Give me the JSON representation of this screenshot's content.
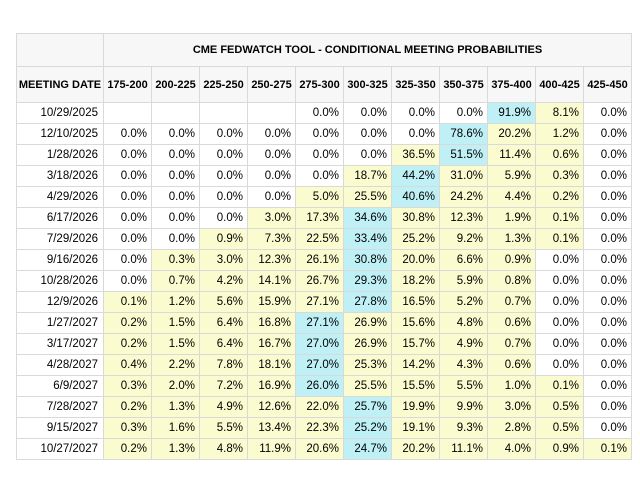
{
  "title": "CME FEDWATCH TOOL - CONDITIONAL MEETING PROBABILITIES",
  "date_header": "MEETING DATE",
  "columns": [
    "175-200",
    "200-225",
    "225-250",
    "250-275",
    "275-300",
    "300-325",
    "325-350",
    "350-375",
    "375-400",
    "400-425",
    "425-450"
  ],
  "colors": {
    "max_cell": "#bff0f5",
    "other_nonzero": "#fbfbd0"
  },
  "rows": [
    {
      "date": "10/29/2025",
      "values": [
        "",
        "",
        "",
        "",
        "0.0%",
        "0.0%",
        "0.0%",
        "0.0%",
        "91.9%",
        "8.1%",
        "0.0%"
      ],
      "hl": [
        "",
        "",
        "",
        "",
        "",
        "",
        "",
        "",
        "c",
        "y",
        ""
      ]
    },
    {
      "date": "12/10/2025",
      "values": [
        "0.0%",
        "0.0%",
        "0.0%",
        "0.0%",
        "0.0%",
        "0.0%",
        "0.0%",
        "78.6%",
        "20.2%",
        "1.2%",
        "0.0%"
      ],
      "hl": [
        "",
        "",
        "",
        "",
        "",
        "",
        "",
        "c",
        "y",
        "y",
        ""
      ]
    },
    {
      "date": "1/28/2026",
      "values": [
        "0.0%",
        "0.0%",
        "0.0%",
        "0.0%",
        "0.0%",
        "0.0%",
        "36.5%",
        "51.5%",
        "11.4%",
        "0.6%",
        "0.0%"
      ],
      "hl": [
        "",
        "",
        "",
        "",
        "",
        "",
        "y",
        "c",
        "y",
        "y",
        ""
      ]
    },
    {
      "date": "3/18/2026",
      "values": [
        "0.0%",
        "0.0%",
        "0.0%",
        "0.0%",
        "0.0%",
        "18.7%",
        "44.2%",
        "31.0%",
        "5.9%",
        "0.3%",
        "0.0%"
      ],
      "hl": [
        "",
        "",
        "",
        "",
        "",
        "y",
        "c",
        "y",
        "y",
        "y",
        ""
      ]
    },
    {
      "date": "4/29/2026",
      "values": [
        "0.0%",
        "0.0%",
        "0.0%",
        "0.0%",
        "5.0%",
        "25.5%",
        "40.6%",
        "24.2%",
        "4.4%",
        "0.2%",
        "0.0%"
      ],
      "hl": [
        "",
        "",
        "",
        "",
        "y",
        "y",
        "c",
        "y",
        "y",
        "y",
        ""
      ]
    },
    {
      "date": "6/17/2026",
      "values": [
        "0.0%",
        "0.0%",
        "0.0%",
        "3.0%",
        "17.3%",
        "34.6%",
        "30.8%",
        "12.3%",
        "1.9%",
        "0.1%",
        "0.0%"
      ],
      "hl": [
        "",
        "",
        "",
        "y",
        "y",
        "c",
        "y",
        "y",
        "y",
        "y",
        ""
      ]
    },
    {
      "date": "7/29/2026",
      "values": [
        "0.0%",
        "0.0%",
        "0.9%",
        "7.3%",
        "22.5%",
        "33.4%",
        "25.2%",
        "9.2%",
        "1.3%",
        "0.1%",
        "0.0%"
      ],
      "hl": [
        "",
        "",
        "y",
        "y",
        "y",
        "c",
        "y",
        "y",
        "y",
        "y",
        ""
      ]
    },
    {
      "date": "9/16/2026",
      "values": [
        "0.0%",
        "0.3%",
        "3.0%",
        "12.3%",
        "26.1%",
        "30.8%",
        "20.0%",
        "6.6%",
        "0.9%",
        "0.0%",
        "0.0%"
      ],
      "hl": [
        "",
        "y",
        "y",
        "y",
        "y",
        "c",
        "y",
        "y",
        "y",
        "",
        ""
      ]
    },
    {
      "date": "10/28/2026",
      "values": [
        "0.0%",
        "0.7%",
        "4.2%",
        "14.1%",
        "26.7%",
        "29.3%",
        "18.2%",
        "5.9%",
        "0.8%",
        "0.0%",
        "0.0%"
      ],
      "hl": [
        "",
        "y",
        "y",
        "y",
        "y",
        "c",
        "y",
        "y",
        "y",
        "",
        ""
      ]
    },
    {
      "date": "12/9/2026",
      "values": [
        "0.1%",
        "1.2%",
        "5.6%",
        "15.9%",
        "27.1%",
        "27.8%",
        "16.5%",
        "5.2%",
        "0.7%",
        "0.0%",
        "0.0%"
      ],
      "hl": [
        "y",
        "y",
        "y",
        "y",
        "y",
        "c",
        "y",
        "y",
        "y",
        "",
        ""
      ]
    },
    {
      "date": "1/27/2027",
      "values": [
        "0.2%",
        "1.5%",
        "6.4%",
        "16.8%",
        "27.1%",
        "26.9%",
        "15.6%",
        "4.8%",
        "0.6%",
        "0.0%",
        "0.0%"
      ],
      "hl": [
        "y",
        "y",
        "y",
        "y",
        "c",
        "y",
        "y",
        "y",
        "y",
        "",
        ""
      ]
    },
    {
      "date": "3/17/2027",
      "values": [
        "0.2%",
        "1.5%",
        "6.4%",
        "16.7%",
        "27.0%",
        "26.9%",
        "15.7%",
        "4.9%",
        "0.7%",
        "0.0%",
        "0.0%"
      ],
      "hl": [
        "y",
        "y",
        "y",
        "y",
        "c",
        "y",
        "y",
        "y",
        "y",
        "",
        ""
      ]
    },
    {
      "date": "4/28/2027",
      "values": [
        "0.4%",
        "2.2%",
        "7.8%",
        "18.1%",
        "27.0%",
        "25.3%",
        "14.2%",
        "4.3%",
        "0.6%",
        "0.0%",
        "0.0%"
      ],
      "hl": [
        "y",
        "y",
        "y",
        "y",
        "c",
        "y",
        "y",
        "y",
        "y",
        "",
        ""
      ]
    },
    {
      "date": "6/9/2027",
      "values": [
        "0.3%",
        "2.0%",
        "7.2%",
        "16.9%",
        "26.0%",
        "25.5%",
        "15.5%",
        "5.5%",
        "1.0%",
        "0.1%",
        "0.0%"
      ],
      "hl": [
        "y",
        "y",
        "y",
        "y",
        "c",
        "y",
        "y",
        "y",
        "y",
        "y",
        ""
      ]
    },
    {
      "date": "7/28/2027",
      "values": [
        "0.2%",
        "1.3%",
        "4.9%",
        "12.6%",
        "22.0%",
        "25.7%",
        "19.9%",
        "9.9%",
        "3.0%",
        "0.5%",
        "0.0%"
      ],
      "hl": [
        "y",
        "y",
        "y",
        "y",
        "y",
        "c",
        "y",
        "y",
        "y",
        "y",
        ""
      ]
    },
    {
      "date": "9/15/2027",
      "values": [
        "0.3%",
        "1.6%",
        "5.5%",
        "13.4%",
        "22.3%",
        "25.2%",
        "19.1%",
        "9.3%",
        "2.8%",
        "0.5%",
        "0.0%"
      ],
      "hl": [
        "y",
        "y",
        "y",
        "y",
        "y",
        "c",
        "y",
        "y",
        "y",
        "y",
        ""
      ]
    },
    {
      "date": "10/27/2027",
      "values": [
        "0.2%",
        "1.3%",
        "4.8%",
        "11.9%",
        "20.6%",
        "24.7%",
        "20.2%",
        "11.1%",
        "4.0%",
        "0.9%",
        "0.1%"
      ],
      "hl": [
        "y",
        "y",
        "y",
        "y",
        "y",
        "c",
        "y",
        "y",
        "y",
        "y",
        "y"
      ]
    }
  ]
}
